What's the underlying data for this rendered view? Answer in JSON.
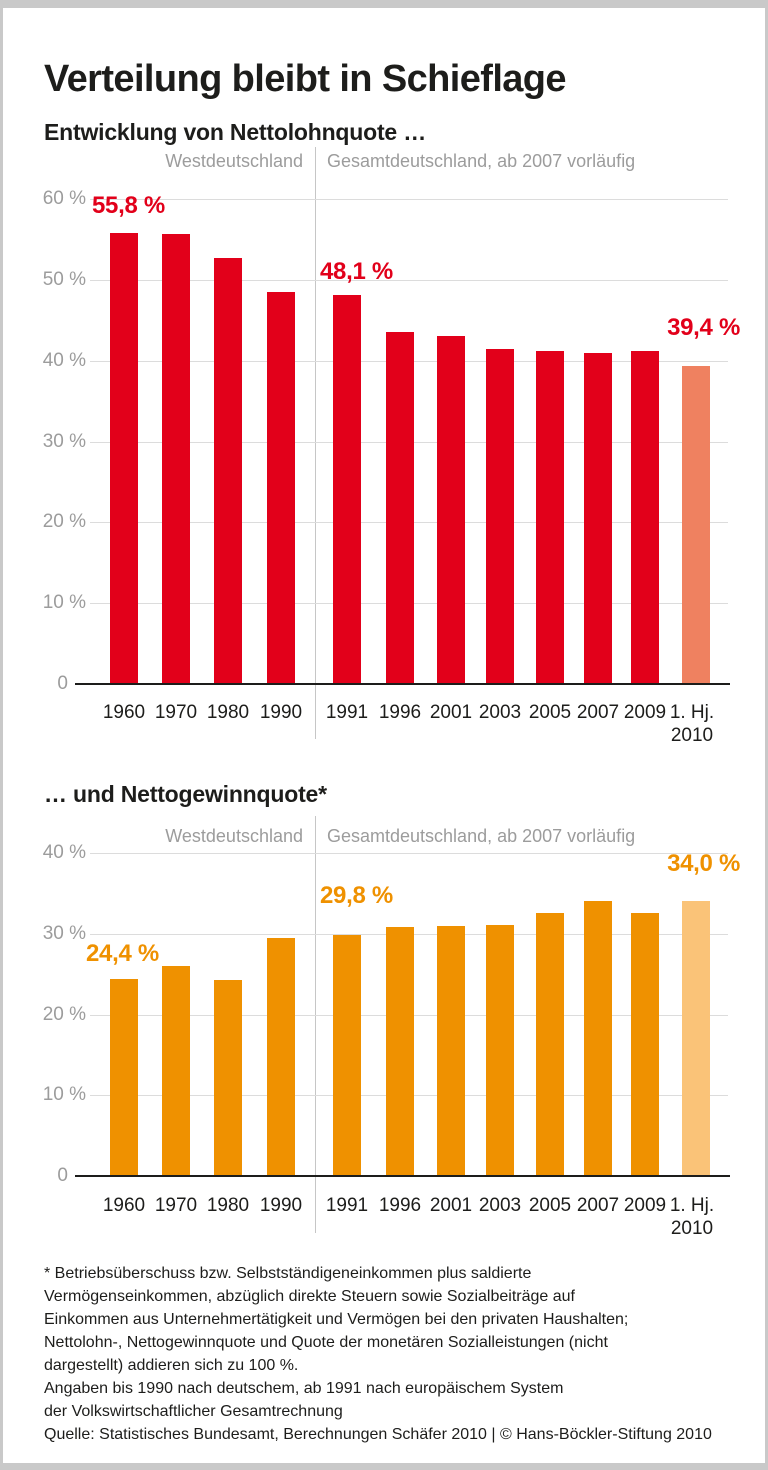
{
  "title": "Verteilung bleibt in Schieflage",
  "chart_data": [
    {
      "type": "bar",
      "subtitle": "Entwicklung von Nettolohnquote …",
      "region_labels": [
        "Westdeutschland",
        "Gesamtdeutschland, ab 2007 vorläufig"
      ],
      "categories": [
        "1960",
        "1970",
        "1980",
        "1990",
        "1991",
        "1996",
        "2001",
        "2003",
        "2005",
        "2007",
        "2009",
        "1. Hj.\n2010"
      ],
      "values": [
        55.8,
        55.7,
        52.7,
        48.5,
        48.1,
        43.5,
        43.0,
        41.5,
        41.2,
        41.0,
        41.2,
        39.4
      ],
      "unit": "%",
      "bar_color": "#e2001a",
      "highlight_color": "#ef8160",
      "highlight_index": 11,
      "divider_after_index": 3,
      "ylim": [
        0,
        60
      ],
      "yticks": [
        {
          "v": 60,
          "label": "60 %"
        },
        {
          "v": 50,
          "label": "50 %"
        },
        {
          "v": 40,
          "label": "40 %"
        },
        {
          "v": 30,
          "label": "30 %"
        },
        {
          "v": 20,
          "label": "20 %"
        },
        {
          "v": 10,
          "label": "10 %"
        },
        {
          "v": 0,
          "label": "0"
        }
      ],
      "annotations": [
        {
          "text": "55,8 %",
          "index": 0
        },
        {
          "text": "48,1 %",
          "index": 4
        },
        {
          "text": "39,4 %",
          "index": 11
        }
      ],
      "grid": true,
      "legend_position": "top"
    },
    {
      "type": "bar",
      "subtitle": "… und Nettogewinnquote*",
      "region_labels": [
        "Westdeutschland",
        "Gesamtdeutschland, ab 2007 vorläufig"
      ],
      "categories": [
        "1960",
        "1970",
        "1980",
        "1990",
        "1991",
        "1996",
        "2001",
        "2003",
        "2005",
        "2007",
        "2009",
        "1. Hj.\n2010"
      ],
      "values": [
        24.4,
        26.0,
        24.3,
        29.5,
        29.8,
        30.8,
        30.9,
        31.1,
        32.6,
        34.1,
        32.6,
        34.0
      ],
      "unit": "%",
      "bar_color": "#ef9100",
      "highlight_color": "#fac378",
      "highlight_index": 11,
      "divider_after_index": 3,
      "ylim": [
        0,
        40
      ],
      "yticks": [
        {
          "v": 40,
          "label": "40 %"
        },
        {
          "v": 30,
          "label": "30 %"
        },
        {
          "v": 20,
          "label": "20 %"
        },
        {
          "v": 10,
          "label": "10 %"
        },
        {
          "v": 0,
          "label": "0"
        }
      ],
      "annotations": [
        {
          "text": "24,4 %",
          "index": 0
        },
        {
          "text": "29,8 %",
          "index": 4
        },
        {
          "text": "34,0 %",
          "index": 11
        }
      ],
      "grid": true,
      "legend_position": "top"
    }
  ],
  "footnote_lines": [
    "* Betriebsüberschuss bzw. Selbstständigeneinkommen plus saldierte",
    "Vermögenseinkommen, abzüglich direkte Steuern sowie Sozialbeiträge auf",
    "Einkommen aus Unternehmertätigkeit und Vermögen bei den privaten Haushalten;",
    "Nettolohn-, Nettogewinnquote und Quote der monetären Sozialleistungen (nicht",
    "dargestellt) addieren sich zu 100 %.",
    "Angaben bis 1990 nach deutschem, ab 1991 nach europäischem System",
    "der Volkswirtschaftlicher Gesamtrechnung",
    "Quelle: Statistisches Bundesamt, Berechnungen Schäfer 2010 | © Hans-Böckler-Stiftung 2010"
  ]
}
